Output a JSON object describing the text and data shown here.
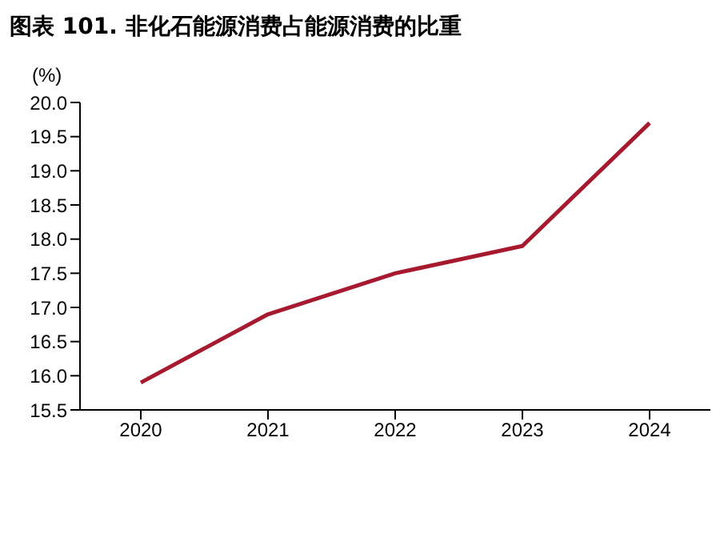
{
  "chart_data": {
    "type": "line",
    "title": "图表 101. 非化石能源消费占能源消费的比重",
    "ylabel": "(%)",
    "categories": [
      "2020",
      "2021",
      "2022",
      "2023",
      "2024"
    ],
    "series": [
      {
        "color": "#a6192e",
        "values": [
          15.9,
          16.9,
          17.5,
          17.9,
          19.7
        ]
      }
    ],
    "ylim": [
      15.5,
      20.0
    ],
    "yticks": [
      {
        "value": 15.5,
        "label": "15.5"
      },
      {
        "value": 16,
        "label": "16.0"
      },
      {
        "value": 16.5,
        "label": "16.5"
      },
      {
        "value": 17,
        "label": "17.0"
      },
      {
        "value": 17.5,
        "label": "17.5"
      },
      {
        "value": 18,
        "label": "18.0"
      },
      {
        "value": 18.5,
        "label": "18.5"
      },
      {
        "value": 19,
        "label": "19.0"
      },
      {
        "value": 19.5,
        "label": "19.5"
      },
      {
        "value": 20,
        "label": "20.0"
      }
    ],
    "grid": false,
    "legend": false,
    "marker": "none",
    "line_style": "solid"
  }
}
